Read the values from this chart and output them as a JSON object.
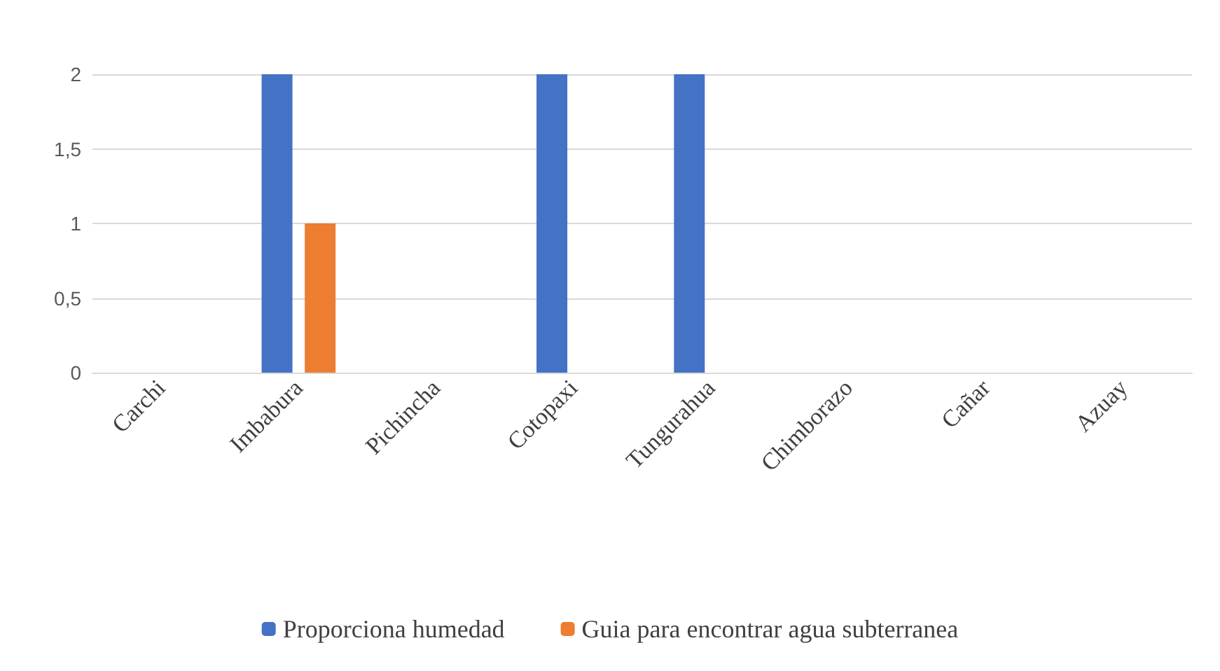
{
  "chart_data": {
    "type": "bar",
    "categories": [
      "Carchi",
      "Imbabura",
      "Pichincha",
      "Cotopaxi",
      "Tungurahua",
      "Chimborazo",
      "Cañar",
      "Azuay"
    ],
    "series": [
      {
        "name": "Proporciona humedad",
        "color": "#4472c4",
        "values": [
          0,
          2,
          0,
          2,
          2,
          0,
          0,
          0
        ]
      },
      {
        "name": "Guia para encontrar agua subterranea",
        "color": "#ed7d31",
        "values": [
          0,
          1,
          0,
          0,
          0,
          0,
          0,
          0
        ]
      }
    ],
    "ylim": [
      0,
      2
    ],
    "yticks": [
      0,
      {
        "value": 0.5,
        "label": "0,5"
      },
      1,
      {
        "value": 1.5,
        "label": "1,5"
      },
      2
    ],
    "grid": "y",
    "legend": "bottom"
  }
}
